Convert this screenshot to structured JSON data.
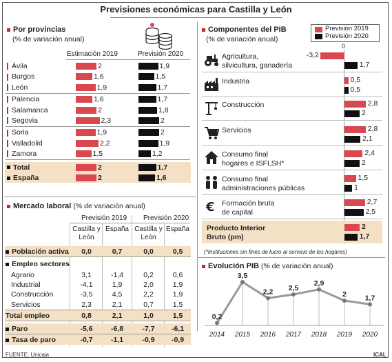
{
  "title": "Previsiones económicas para Castilla y León",
  "provincias": {
    "title": "Por provincias",
    "subtitle": "(% de variación anual)",
    "col_est": "Estimación 2019",
    "col_prev": "Previsión 2020",
    "rows": [
      {
        "name": "Ávila",
        "v2019": "2",
        "v2020": "1,9"
      },
      {
        "name": "Burgos",
        "v2019": "1,6",
        "v2020": "1,5"
      },
      {
        "name": "León",
        "v2019": "1,9",
        "v2020": "1,7"
      },
      {
        "name": "Palencia",
        "v2019": "1,6",
        "v2020": "1,7"
      },
      {
        "name": "Salamanca",
        "v2019": "2",
        "v2020": "1,8"
      },
      {
        "name": "Segovia",
        "v2019": "2,3",
        "v2020": "2"
      },
      {
        "name": "Soria",
        "v2019": "1,9",
        "v2020": "2"
      },
      {
        "name": "Valladolid",
        "v2019": "2,2",
        "v2020": "1,9"
      },
      {
        "name": "Zamora",
        "v2019": "1,5",
        "v2020": "1,2"
      },
      {
        "name": "Total",
        "v2019": "2",
        "v2020": "1,7"
      },
      {
        "name": "España",
        "v2019": "2",
        "v2020": "1,6"
      }
    ]
  },
  "componentes": {
    "title": "Componentes del PIB",
    "subtitle": "(% de variación anual)",
    "legend_2019": "Previsión 2019",
    "legend_2020": "Previsión 2020",
    "zero_label": "0",
    "note": "(*Instituciones sin fines de lucro al servicio de los hogares)",
    "rows": [
      {
        "l1": "Agricultura,",
        "l2": "silvicultura, ganadería",
        "v2019": "-3,2",
        "v2020": "1,7",
        "icon": "tractor-icon"
      },
      {
        "l1": "Industria",
        "l2": "",
        "v2019": "0,5",
        "v2020": "0,5",
        "icon": "factory-icon"
      },
      {
        "l1": "Construcción",
        "l2": "",
        "v2019": "2,8",
        "v2020": "2",
        "icon": "crane-icon"
      },
      {
        "l1": "Servicios",
        "l2": "",
        "v2019": "2,8",
        "v2020": "2,1",
        "icon": "cart-icon"
      },
      {
        "l1": "Consumo final",
        "l2": "hogares e ISFLSH*",
        "v2019": "2,4",
        "v2020": "2",
        "icon": "house-icon"
      },
      {
        "l1": "Consumo final",
        "l2": "administraciones públicas",
        "v2019": "1,5",
        "v2020": "1",
        "icon": "people-icon"
      },
      {
        "l1": "Formación bruta",
        "l2": "de capital",
        "v2019": "2,7",
        "v2020": "2,5",
        "icon": "euro-icon"
      },
      {
        "l1": "Producto Interior",
        "l2": "Bruto (pm)",
        "v2019": "2",
        "v2020": "1,7",
        "icon": ""
      }
    ]
  },
  "mercado": {
    "title": "Mercado laboral",
    "subtitle": "(% de variación anual)",
    "group1": "Previsión 2019",
    "group2": "Previsión 2020",
    "col_cyl": "Castilla y León",
    "col_esp": "España",
    "rows": [
      {
        "label": "Población activa",
        "c1": "0,0",
        "c2": "0,7",
        "c3": "0,0",
        "c4": "0,5",
        "style": "hl-sq"
      },
      {
        "label": "Empleo sectores",
        "c1": "",
        "c2": "",
        "c3": "",
        "c4": "",
        "style": "bold-sq"
      },
      {
        "label": "Agrario",
        "c1": "3,1",
        "c2": "-1,4",
        "c3": "0,2",
        "c4": "0,6",
        "style": "plain"
      },
      {
        "label": "Industrial",
        "c1": "-4,1",
        "c2": "1,9",
        "c3": "2,0",
        "c4": "1,9",
        "style": "plain"
      },
      {
        "label": "Construcción",
        "c1": "-3,5",
        "c2": "4,5",
        "c3": "2,2",
        "c4": "1,9",
        "style": "plain"
      },
      {
        "label": "Servicios",
        "c1": "2,3",
        "c2": "2,1",
        "c3": "0,7",
        "c4": "1,5",
        "style": "plain"
      },
      {
        "label": "Total empleo",
        "c1": "0,8",
        "c2": "2,1",
        "c3": "1,0",
        "c4": "1,5",
        "style": "hl"
      },
      {
        "label": "Paro",
        "c1": "-5,6",
        "c2": "-6,8",
        "c3": "-7,7",
        "c4": "-6,1",
        "style": "hl-sq"
      },
      {
        "label": "Tasa de paro",
        "c1": "-0,7",
        "c2": "-1,1",
        "c3": "-0,9",
        "c4": "-0,9",
        "style": "hl-sq"
      }
    ]
  },
  "evolucion": {
    "title": "Evolución PIB",
    "subtitle": "(% de variación anual)"
  },
  "footer": {
    "source": "FUENTE: Unicaja",
    "agency": "ICAL"
  },
  "colors": {
    "red": "#d9474f",
    "black": "#111111",
    "highlight": "#f4e1c5",
    "accent": "#c62828"
  },
  "chart_data": [
    {
      "type": "bar",
      "title": "Por provincias",
      "categories": [
        "Ávila",
        "Burgos",
        "León",
        "Palencia",
        "Salamanca",
        "Segovia",
        "Soria",
        "Valladolid",
        "Zamora",
        "Total",
        "España"
      ],
      "series": [
        {
          "name": "Estimación 2019",
          "values": [
            2,
            1.6,
            1.9,
            1.6,
            2,
            2.3,
            1.9,
            2.2,
            1.5,
            2,
            2
          ]
        },
        {
          "name": "Previsión 2020",
          "values": [
            1.9,
            1.5,
            1.7,
            1.7,
            1.8,
            2,
            2,
            1.9,
            1.2,
            1.7,
            1.6
          ]
        }
      ]
    },
    {
      "type": "bar",
      "title": "Componentes del PIB",
      "categories": [
        "Agricultura, silvicultura, ganadería",
        "Industria",
        "Construcción",
        "Servicios",
        "Consumo final hogares e ISFLSH*",
        "Consumo final administraciones públicas",
        "Formación bruta de capital",
        "Producto Interior Bruto (pm)"
      ],
      "series": [
        {
          "name": "Previsión 2019",
          "values": [
            -3.2,
            0.5,
            2.8,
            2.8,
            2.4,
            1.5,
            2.7,
            2
          ]
        },
        {
          "name": "Previsión 2020",
          "values": [
            1.7,
            0.5,
            2,
            2.1,
            2,
            1,
            2.5,
            1.7
          ]
        }
      ]
    },
    {
      "type": "line",
      "title": "Evolución PIB",
      "x": [
        "2014",
        "2015",
        "2016",
        "2017",
        "2018",
        "2019",
        "2020"
      ],
      "y": [
        0.2,
        3.5,
        2.2,
        2.5,
        2.9,
        2,
        1.7
      ],
      "labels": [
        "0,2",
        "3,5",
        "2,2",
        "2,5",
        "2,9",
        "2",
        "1,7"
      ],
      "ylim": [
        0,
        4
      ]
    }
  ]
}
